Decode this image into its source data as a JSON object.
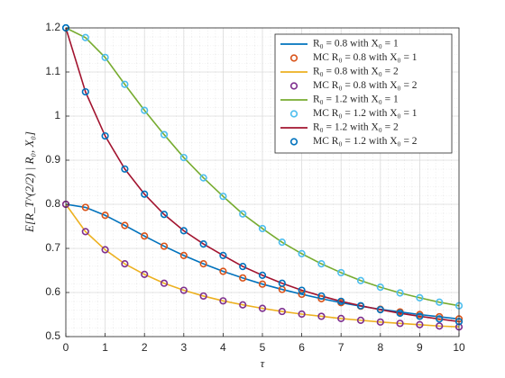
{
  "chart_data": {
    "type": "line",
    "x_label": "τ",
    "y_label": "E[R_T^(2/2) | R₀, X₀]",
    "xlim": [
      0,
      10
    ],
    "ylim": [
      0.5,
      1.2
    ],
    "xticks": [
      0,
      1,
      2,
      3,
      4,
      5,
      6,
      7,
      8,
      9,
      10
    ],
    "yticks": [
      0.5,
      0.6,
      0.7,
      0.8,
      0.9,
      1,
      1.1,
      1.2
    ],
    "grid": true,
    "minor_grid": true,
    "legend": "upper right",
    "x": [
      0,
      0.5,
      1,
      1.5,
      2,
      2.5,
      3,
      3.5,
      4,
      4.5,
      5,
      5.5,
      6,
      6.5,
      7,
      7.5,
      8,
      8.5,
      9,
      9.5,
      10
    ],
    "series": [
      {
        "name": "R₀ = 0.8 with X₀ = 1",
        "style": "line",
        "color": "#0072BD",
        "values": [
          0.8,
          0.793,
          0.775,
          0.752,
          0.728,
          0.705,
          0.684,
          0.665,
          0.648,
          0.633,
          0.619,
          0.607,
          0.596,
          0.586,
          0.577,
          0.569,
          0.562,
          0.556,
          0.55,
          0.545,
          0.54
        ]
      },
      {
        "name": "MC R₀ = 0.8 with X₀ = 1",
        "style": "marker",
        "color": "#D95319",
        "values": [
          0.8,
          0.793,
          0.775,
          0.752,
          0.728,
          0.705,
          0.684,
          0.665,
          0.648,
          0.633,
          0.619,
          0.607,
          0.596,
          0.586,
          0.577,
          0.569,
          0.562,
          0.556,
          0.55,
          0.545,
          0.54
        ]
      },
      {
        "name": "R₀ = 0.8 with X₀ = 2",
        "style": "line",
        "color": "#EDB120",
        "values": [
          0.8,
          0.738,
          0.697,
          0.665,
          0.641,
          0.621,
          0.605,
          0.592,
          0.581,
          0.572,
          0.564,
          0.557,
          0.551,
          0.546,
          0.541,
          0.537,
          0.533,
          0.53,
          0.527,
          0.524,
          0.522
        ]
      },
      {
        "name": "MC R₀ = 0.8 with X₀ = 2",
        "style": "marker",
        "color": "#7E2F8E",
        "values": [
          0.8,
          0.738,
          0.697,
          0.665,
          0.641,
          0.621,
          0.605,
          0.592,
          0.581,
          0.572,
          0.564,
          0.557,
          0.551,
          0.546,
          0.541,
          0.537,
          0.533,
          0.53,
          0.527,
          0.524,
          0.522
        ]
      },
      {
        "name": "R₀ = 1.2 with X₀ = 1",
        "style": "line",
        "color": "#77AC30",
        "values": [
          1.2,
          1.178,
          1.133,
          1.072,
          1.013,
          0.958,
          0.906,
          0.86,
          0.818,
          0.778,
          0.745,
          0.714,
          0.688,
          0.665,
          0.645,
          0.627,
          0.612,
          0.599,
          0.588,
          0.578,
          0.57
        ]
      },
      {
        "name": "MC R₀ = 1.2 with X₀ = 1",
        "style": "marker",
        "color": "#4DBEEE",
        "values": [
          1.2,
          1.178,
          1.133,
          1.072,
          1.013,
          0.958,
          0.906,
          0.86,
          0.818,
          0.778,
          0.745,
          0.714,
          0.688,
          0.665,
          0.645,
          0.627,
          0.612,
          0.599,
          0.588,
          0.578,
          0.57
        ]
      },
      {
        "name": "R₀ = 1.2 with X₀ = 2",
        "style": "line",
        "color": "#A2142F",
        "values": [
          1.2,
          1.055,
          0.955,
          0.88,
          0.823,
          0.777,
          0.74,
          0.71,
          0.684,
          0.659,
          0.639,
          0.621,
          0.605,
          0.592,
          0.58,
          0.57,
          0.561,
          0.553,
          0.546,
          0.54,
          0.534
        ]
      },
      {
        "name": "MC R₀ = 1.2 with X₀ = 2",
        "style": "marker",
        "color": "#0072BD",
        "values": [
          1.2,
          1.055,
          0.955,
          0.88,
          0.823,
          0.777,
          0.74,
          0.71,
          0.684,
          0.659,
          0.639,
          0.621,
          0.605,
          0.592,
          0.58,
          0.57,
          0.561,
          0.553,
          0.546,
          0.54,
          0.534
        ]
      }
    ]
  }
}
